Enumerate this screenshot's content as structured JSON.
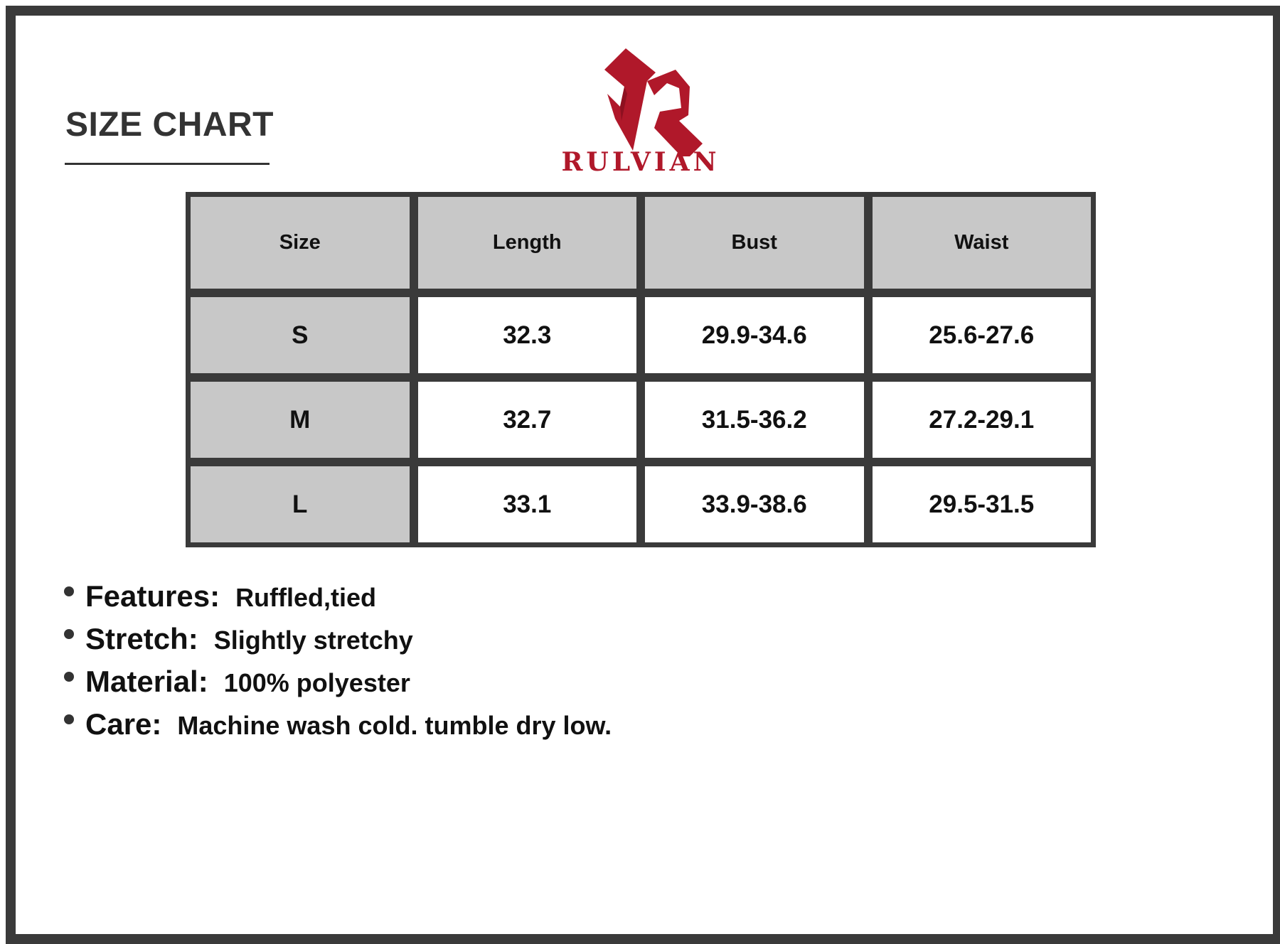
{
  "title": "SIZE CHART",
  "brand": {
    "name": "RULVIAN",
    "color": "#b0182a"
  },
  "table": {
    "headers": [
      "Size",
      "Length",
      "Bust",
      "Waist"
    ],
    "rows": [
      [
        "S",
        "32.3",
        "29.9-34.6",
        "25.6-27.6"
      ],
      [
        "M",
        "32.7",
        "31.5-36.2",
        "27.2-29.1"
      ],
      [
        "L",
        "33.1",
        "33.9-38.6",
        "29.5-31.5"
      ]
    ]
  },
  "features": [
    {
      "label": "Features:",
      "value": "Ruffled,tied"
    },
    {
      "label": "Stretch:",
      "value": "Slightly stretchy"
    },
    {
      "label": "Material:",
      "value": "100% polyester"
    },
    {
      "label": "Care:",
      "value": "Machine wash cold. tumble dry low."
    }
  ]
}
